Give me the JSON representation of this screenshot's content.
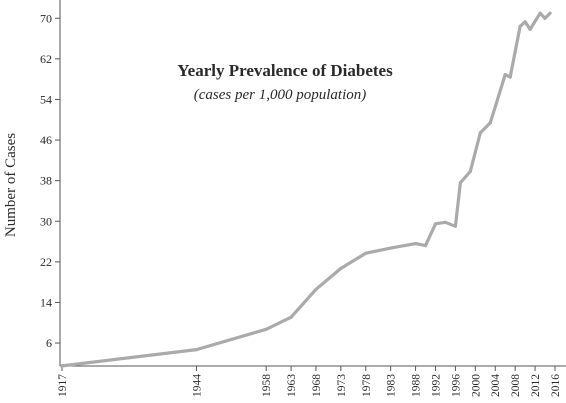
{
  "chart_data": {
    "type": "line",
    "title": "Yearly Prevalence of Diabetes",
    "subtitle": "(cases per 1,000 population)",
    "xlabel": "",
    "ylabel": "Number of Cases",
    "xlim": [
      1917,
      2016
    ],
    "ylim": [
      0,
      72
    ],
    "yticks": [
      6,
      14,
      22,
      30,
      38,
      46,
      54,
      62,
      70
    ],
    "xticks": [
      1917,
      1944,
      1958,
      1963,
      1968,
      1973,
      1978,
      1983,
      1988,
      1992,
      1996,
      2000,
      2004,
      2008,
      2012,
      2016
    ],
    "grid": false,
    "series": [
      {
        "color": "#aaaaaa",
        "x": [
          1917,
          1944,
          1958,
          1963,
          1968,
          1973,
          1978,
          1983,
          1988,
          1990,
          1992,
          1994,
          1996,
          1997,
          1999,
          2001,
          2003,
          2006,
          2007,
          2009,
          2010,
          2011,
          2013,
          2014,
          2015
        ],
        "y": [
          1.5,
          4.7,
          8.7,
          11.1,
          16.6,
          20.7,
          23.7,
          24.7,
          25.6,
          25.2,
          29.5,
          29.8,
          29.0,
          37.6,
          39.8,
          47.4,
          49.4,
          58.9,
          58.4,
          68.4,
          69.3,
          67.8,
          71.0,
          70.0,
          71.0
        ]
      }
    ]
  }
}
